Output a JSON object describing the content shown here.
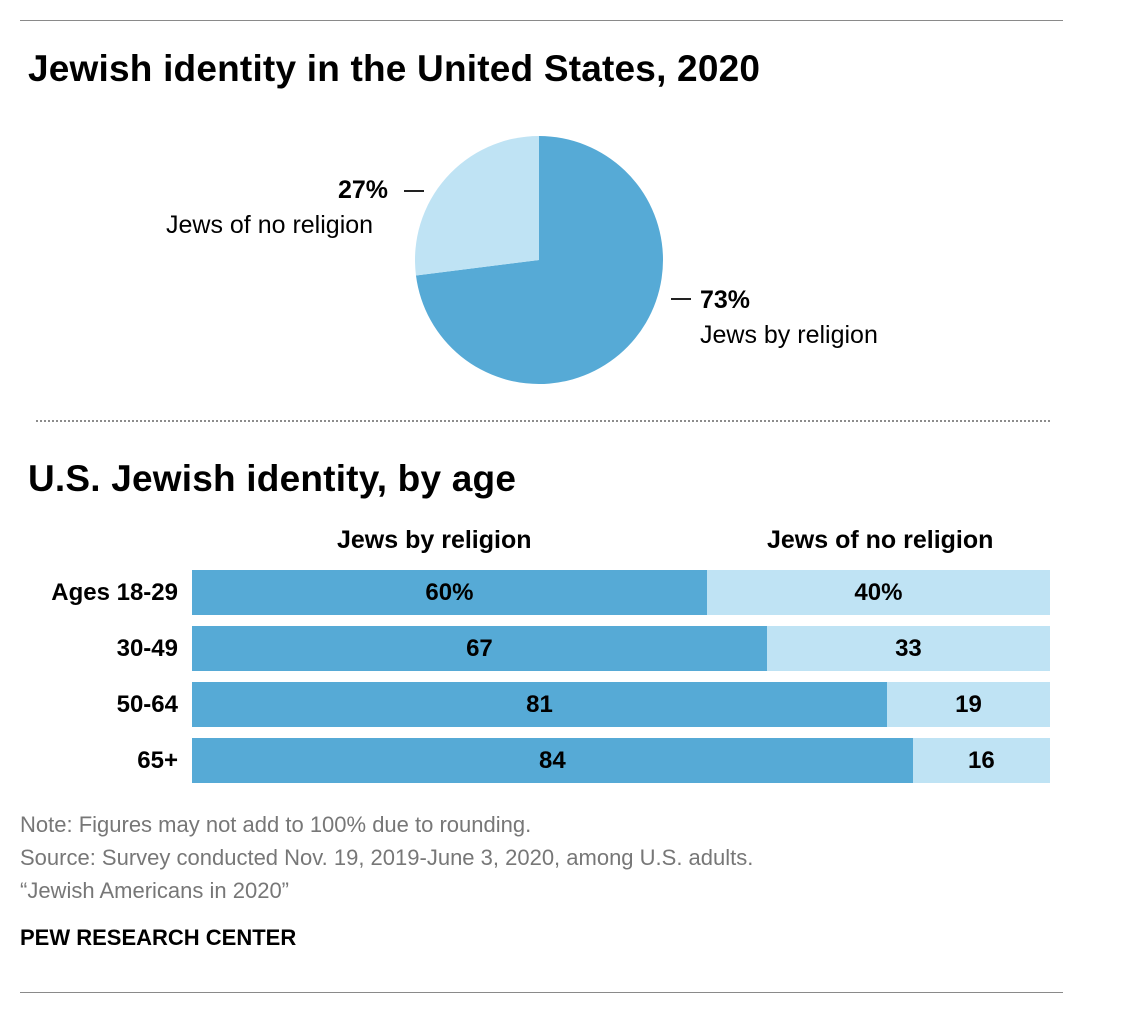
{
  "chart_data": [
    {
      "type": "pie",
      "title": "Jewish identity in the United States, 2020",
      "slices": [
        {
          "label": "Jews by religion",
          "value": 73,
          "value_label": "73%",
          "color": "#56aad6"
        },
        {
          "label": "Jews of no religion",
          "value": 27,
          "value_label": "27%",
          "color": "#bfe3f4"
        }
      ]
    },
    {
      "type": "bar",
      "orientation": "horizontal",
      "stacked": true,
      "title": "U.S. Jewish identity, by age",
      "categories": [
        "Ages 18-29",
        "30-49",
        "50-64",
        "65+"
      ],
      "series": [
        {
          "name": "Jews by religion",
          "color": "#56aad6",
          "values": [
            60,
            67,
            81,
            84
          ],
          "labels": [
            "60%",
            "67",
            "81",
            "84"
          ]
        },
        {
          "name": "Jews of no religion",
          "color": "#bfe3f4",
          "values": [
            40,
            33,
            19,
            16
          ],
          "labels": [
            "40%",
            "33",
            "19",
            "16"
          ]
        }
      ],
      "xlim": [
        0,
        100
      ]
    }
  ],
  "footer": {
    "note": "Note: Figures may not add to 100% due to rounding.",
    "source": "Source: Survey conducted Nov. 19, 2019-June 3, 2020, among U.S. adults.",
    "report": "“Jewish Americans in 2020”",
    "org": "PEW RESEARCH CENTER"
  }
}
